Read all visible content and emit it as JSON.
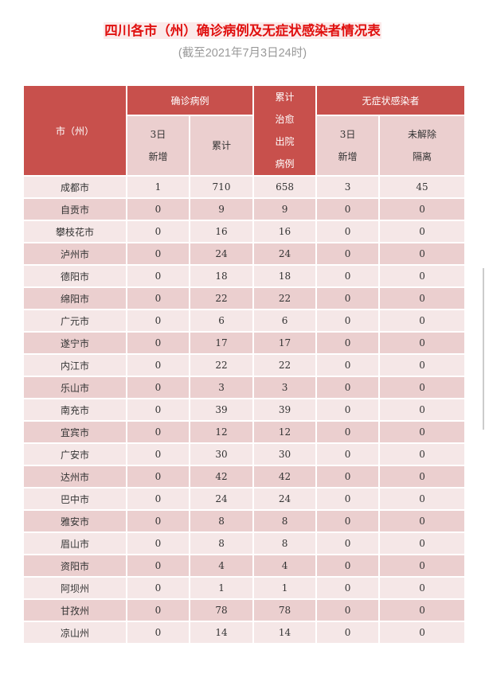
{
  "title": "四川各市（州）确诊病例及无症状感染者情况表",
  "subtitle": "(截至2021年7月3日24时)",
  "header": {
    "city": "市（州）",
    "confirmed": "确诊病例",
    "confirmed_new_1": "3日",
    "confirmed_new_2": "新增",
    "confirmed_total": "累计",
    "cured_lines": [
      "累计",
      "治愈",
      "出院",
      "病例"
    ],
    "asymptomatic": "无症状感染者",
    "asym_new_1": "3日",
    "asym_new_2": "新增",
    "asym_iso_1": "未解除",
    "asym_iso_2": "隔离"
  },
  "rows": [
    [
      "成都市",
      "1",
      "710",
      "658",
      "3",
      "45"
    ],
    [
      "自贡市",
      "0",
      "9",
      "9",
      "0",
      "0"
    ],
    [
      "攀枝花市",
      "0",
      "16",
      "16",
      "0",
      "0"
    ],
    [
      "泸州市",
      "0",
      "24",
      "24",
      "0",
      "0"
    ],
    [
      "德阳市",
      "0",
      "18",
      "18",
      "0",
      "0"
    ],
    [
      "绵阳市",
      "0",
      "22",
      "22",
      "0",
      "0"
    ],
    [
      "广元市",
      "0",
      "6",
      "6",
      "0",
      "0"
    ],
    [
      "遂宁市",
      "0",
      "17",
      "17",
      "0",
      "0"
    ],
    [
      "内江市",
      "0",
      "22",
      "22",
      "0",
      "0"
    ],
    [
      "乐山市",
      "0",
      "3",
      "3",
      "0",
      "0"
    ],
    [
      "南充市",
      "0",
      "39",
      "39",
      "0",
      "0"
    ],
    [
      "宜宾市",
      "0",
      "12",
      "12",
      "0",
      "0"
    ],
    [
      "广安市",
      "0",
      "30",
      "30",
      "0",
      "0"
    ],
    [
      "达州市",
      "0",
      "42",
      "42",
      "0",
      "0"
    ],
    [
      "巴中市",
      "0",
      "24",
      "24",
      "0",
      "0"
    ],
    [
      "雅安市",
      "0",
      "8",
      "8",
      "0",
      "0"
    ],
    [
      "眉山市",
      "0",
      "8",
      "8",
      "0",
      "0"
    ],
    [
      "资阳市",
      "0",
      "4",
      "4",
      "0",
      "0"
    ],
    [
      "阿坝州",
      "0",
      "1",
      "1",
      "0",
      "0"
    ],
    [
      "甘孜州",
      "0",
      "78",
      "78",
      "0",
      "0"
    ],
    [
      "凉山州",
      "0",
      "14",
      "14",
      "0",
      "0"
    ]
  ],
  "colors": {
    "title": "#e0100f",
    "header": "#c8504c",
    "row_light": "#f5e7e7",
    "row_dark": "#ebcfcf"
  }
}
